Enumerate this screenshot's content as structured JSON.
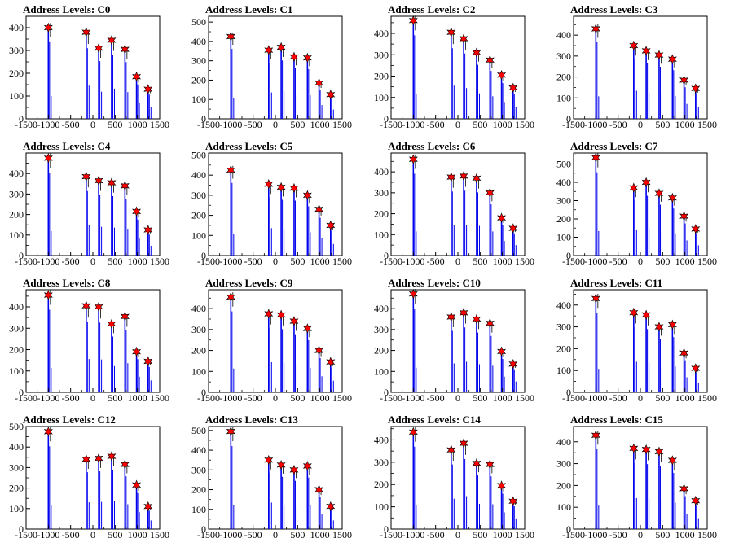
{
  "chart_data": [
    {
      "type": "bar",
      "title": "Address Levels: C0",
      "xlim": [
        -1500,
        1500
      ],
      "ylim": [
        0,
        450
      ],
      "x_ticks": [
        -1500,
        -1000,
        -500,
        0,
        500,
        1000,
        1500
      ],
      "y_ticks": [
        0,
        100,
        200,
        300,
        400
      ],
      "peaks": [
        {
          "x": -1000,
          "y": 400
        },
        {
          "x": -150,
          "y": 380
        },
        {
          "x": 130,
          "y": 310
        },
        {
          "x": 420,
          "y": 345
        },
        {
          "x": 720,
          "y": 305
        },
        {
          "x": 980,
          "y": 185
        },
        {
          "x": 1240,
          "y": 130
        }
      ]
    },
    {
      "type": "bar",
      "title": "Address Levels: C1",
      "xlim": [
        -1500,
        1500
      ],
      "ylim": [
        0,
        530
      ],
      "x_ticks": [
        -1500,
        -1000,
        -500,
        0,
        500,
        1000,
        1500
      ],
      "y_ticks": [
        0,
        100,
        200,
        300,
        400,
        500
      ],
      "peaks": [
        {
          "x": -1000,
          "y": 425
        },
        {
          "x": -150,
          "y": 355
        },
        {
          "x": 130,
          "y": 370
        },
        {
          "x": 420,
          "y": 320
        },
        {
          "x": 720,
          "y": 315
        },
        {
          "x": 980,
          "y": 185
        },
        {
          "x": 1240,
          "y": 125
        }
      ]
    },
    {
      "type": "bar",
      "title": "Address Levels: C2",
      "xlim": [
        -1500,
        1500
      ],
      "ylim": [
        0,
        480
      ],
      "x_ticks": [
        -1500,
        -1000,
        -500,
        0,
        500,
        1000,
        1500
      ],
      "y_ticks": [
        0,
        100,
        200,
        300,
        400
      ],
      "peaks": [
        {
          "x": -1000,
          "y": 460
        },
        {
          "x": -150,
          "y": 405
        },
        {
          "x": 130,
          "y": 375
        },
        {
          "x": 420,
          "y": 310
        },
        {
          "x": 720,
          "y": 275
        },
        {
          "x": 980,
          "y": 205
        },
        {
          "x": 1240,
          "y": 145
        }
      ]
    },
    {
      "type": "bar",
      "title": "Address Levels: C3",
      "xlim": [
        -1500,
        1500
      ],
      "ylim": [
        0,
        490
      ],
      "x_ticks": [
        -1500,
        -1000,
        -500,
        0,
        500,
        1000,
        1500
      ],
      "y_ticks": [
        0,
        100,
        200,
        300,
        400
      ],
      "peaks": [
        {
          "x": -1000,
          "y": 430
        },
        {
          "x": -150,
          "y": 350
        },
        {
          "x": 130,
          "y": 325
        },
        {
          "x": 420,
          "y": 305
        },
        {
          "x": 720,
          "y": 285
        },
        {
          "x": 980,
          "y": 185
        },
        {
          "x": 1240,
          "y": 145
        }
      ]
    },
    {
      "type": "bar",
      "title": "Address Levels: C4",
      "xlim": [
        -1500,
        1500
      ],
      "ylim": [
        0,
        500
      ],
      "x_ticks": [
        -1500,
        -1000,
        -500,
        0,
        500,
        1000,
        1500
      ],
      "y_ticks": [
        0,
        100,
        200,
        300,
        400
      ],
      "peaks": [
        {
          "x": -1000,
          "y": 475
        },
        {
          "x": -150,
          "y": 385
        },
        {
          "x": 130,
          "y": 365
        },
        {
          "x": 420,
          "y": 355
        },
        {
          "x": 720,
          "y": 340
        },
        {
          "x": 980,
          "y": 215
        },
        {
          "x": 1240,
          "y": 125
        }
      ]
    },
    {
      "type": "bar",
      "title": "Address Levels: C5",
      "xlim": [
        -1500,
        1500
      ],
      "ylim": [
        0,
        510
      ],
      "x_ticks": [
        -1500,
        -1000,
        -500,
        0,
        500,
        1000,
        1500
      ],
      "y_ticks": [
        0,
        100,
        200,
        300,
        400,
        500
      ],
      "peaks": [
        {
          "x": -1000,
          "y": 425
        },
        {
          "x": -150,
          "y": 355
        },
        {
          "x": 130,
          "y": 340
        },
        {
          "x": 420,
          "y": 335
        },
        {
          "x": 720,
          "y": 300
        },
        {
          "x": 980,
          "y": 230
        },
        {
          "x": 1240,
          "y": 150
        }
      ]
    },
    {
      "type": "bar",
      "title": "Address Levels: C6",
      "xlim": [
        -1500,
        1500
      ],
      "ylim": [
        0,
        490
      ],
      "x_ticks": [
        -1500,
        -1000,
        -500,
        0,
        500,
        1000,
        1500
      ],
      "y_ticks": [
        0,
        100,
        200,
        300,
        400
      ],
      "peaks": [
        {
          "x": -1000,
          "y": 460
        },
        {
          "x": -150,
          "y": 375
        },
        {
          "x": 130,
          "y": 380
        },
        {
          "x": 420,
          "y": 370
        },
        {
          "x": 720,
          "y": 300
        },
        {
          "x": 980,
          "y": 180
        },
        {
          "x": 1240,
          "y": 130
        }
      ]
    },
    {
      "type": "bar",
      "title": "Address Levels: C7",
      "xlim": [
        -1500,
        1500
      ],
      "ylim": [
        0,
        560
      ],
      "x_ticks": [
        -1500,
        -1000,
        -500,
        0,
        500,
        1000,
        1500
      ],
      "y_ticks": [
        0,
        100,
        200,
        300,
        400,
        500
      ],
      "peaks": [
        {
          "x": -1000,
          "y": 535
        },
        {
          "x": -150,
          "y": 370
        },
        {
          "x": 130,
          "y": 400
        },
        {
          "x": 420,
          "y": 340
        },
        {
          "x": 720,
          "y": 315
        },
        {
          "x": 980,
          "y": 215
        },
        {
          "x": 1240,
          "y": 145
        }
      ]
    },
    {
      "type": "bar",
      "title": "Address Levels: C8",
      "xlim": [
        -1500,
        1500
      ],
      "ylim": [
        0,
        480
      ],
      "x_ticks": [
        -1500,
        -1000,
        -500,
        0,
        500,
        1000,
        1500
      ],
      "y_ticks": [
        0,
        100,
        200,
        300,
        400
      ],
      "peaks": [
        {
          "x": -1000,
          "y": 455
        },
        {
          "x": -150,
          "y": 405
        },
        {
          "x": 130,
          "y": 400
        },
        {
          "x": 420,
          "y": 320
        },
        {
          "x": 720,
          "y": 355
        },
        {
          "x": 980,
          "y": 190
        },
        {
          "x": 1240,
          "y": 145
        }
      ]
    },
    {
      "type": "bar",
      "title": "Address Levels: C9",
      "xlim": [
        -1500,
        1500
      ],
      "ylim": [
        0,
        490
      ],
      "x_ticks": [
        -1500,
        -1000,
        -500,
        0,
        500,
        1000,
        1500
      ],
      "y_ticks": [
        0,
        100,
        200,
        300,
        400
      ],
      "peaks": [
        {
          "x": -1000,
          "y": 455
        },
        {
          "x": -150,
          "y": 375
        },
        {
          "x": 130,
          "y": 370
        },
        {
          "x": 420,
          "y": 340
        },
        {
          "x": 720,
          "y": 305
        },
        {
          "x": 980,
          "y": 200
        },
        {
          "x": 1240,
          "y": 145
        }
      ]
    },
    {
      "type": "bar",
      "title": "Address Levels: C10",
      "xlim": [
        -1500,
        1500
      ],
      "ylim": [
        0,
        490
      ],
      "x_ticks": [
        -1500,
        -1000,
        -500,
        0,
        500,
        1000,
        1500
      ],
      "y_ticks": [
        0,
        100,
        200,
        300,
        400
      ],
      "peaks": [
        {
          "x": -1000,
          "y": 470
        },
        {
          "x": -150,
          "y": 360
        },
        {
          "x": 130,
          "y": 380
        },
        {
          "x": 420,
          "y": 350
        },
        {
          "x": 720,
          "y": 330
        },
        {
          "x": 980,
          "y": 195
        },
        {
          "x": 1240,
          "y": 135
        }
      ]
    },
    {
      "type": "bar",
      "title": "Address Levels: C11",
      "xlim": [
        -1500,
        1500
      ],
      "ylim": [
        0,
        470
      ],
      "x_ticks": [
        -1500,
        -1000,
        -500,
        0,
        500,
        1000,
        1500
      ],
      "y_ticks": [
        0,
        100,
        200,
        300,
        400
      ],
      "peaks": [
        {
          "x": -1000,
          "y": 430
        },
        {
          "x": -150,
          "y": 365
        },
        {
          "x": 130,
          "y": 355
        },
        {
          "x": 420,
          "y": 300
        },
        {
          "x": 720,
          "y": 310
        },
        {
          "x": 980,
          "y": 180
        },
        {
          "x": 1240,
          "y": 110
        }
      ]
    },
    {
      "type": "bar",
      "title": "Address Levels: C12",
      "xlim": [
        -1500,
        1500
      ],
      "ylim": [
        0,
        500
      ],
      "x_ticks": [
        -1500,
        -1000,
        -500,
        0,
        500,
        1000,
        1500
      ],
      "y_ticks": [
        0,
        100,
        200,
        300,
        400,
        500
      ],
      "peaks": [
        {
          "x": -1000,
          "y": 475
        },
        {
          "x": -150,
          "y": 340
        },
        {
          "x": 130,
          "y": 345
        },
        {
          "x": 420,
          "y": 355
        },
        {
          "x": 720,
          "y": 315
        },
        {
          "x": 980,
          "y": 215
        },
        {
          "x": 1240,
          "y": 110
        }
      ]
    },
    {
      "type": "bar",
      "title": "Address Levels: C13",
      "xlim": [
        -1500,
        1500
      ],
      "ylim": [
        0,
        520
      ],
      "x_ticks": [
        -1500,
        -1000,
        -500,
        0,
        500,
        1000,
        1500
      ],
      "y_ticks": [
        0,
        100,
        200,
        300,
        400,
        500
      ],
      "peaks": [
        {
          "x": -1000,
          "y": 495
        },
        {
          "x": -150,
          "y": 350
        },
        {
          "x": 130,
          "y": 325
        },
        {
          "x": 420,
          "y": 300
        },
        {
          "x": 720,
          "y": 320
        },
        {
          "x": 980,
          "y": 200
        },
        {
          "x": 1240,
          "y": 115
        }
      ]
    },
    {
      "type": "bar",
      "title": "Address Levels: C14",
      "xlim": [
        -1500,
        1500
      ],
      "ylim": [
        0,
        460
      ],
      "x_ticks": [
        -1500,
        -1000,
        -500,
        0,
        500,
        1000,
        1500
      ],
      "y_ticks": [
        0,
        100,
        200,
        300,
        400
      ],
      "peaks": [
        {
          "x": -1000,
          "y": 435
        },
        {
          "x": -150,
          "y": 355
        },
        {
          "x": 130,
          "y": 385
        },
        {
          "x": 420,
          "y": 295
        },
        {
          "x": 720,
          "y": 290
        },
        {
          "x": 980,
          "y": 195
        },
        {
          "x": 1240,
          "y": 125
        }
      ]
    },
    {
      "type": "bar",
      "title": "Address Levels: C15",
      "xlim": [
        -1500,
        1500
      ],
      "ylim": [
        0,
        470
      ],
      "x_ticks": [
        -1500,
        -1000,
        -500,
        0,
        500,
        1000,
        1500
      ],
      "y_ticks": [
        0,
        100,
        200,
        300,
        400
      ],
      "peaks": [
        {
          "x": -1000,
          "y": 430
        },
        {
          "x": -150,
          "y": 370
        },
        {
          "x": 130,
          "y": 365
        },
        {
          "x": 420,
          "y": 355
        },
        {
          "x": 720,
          "y": 315
        },
        {
          "x": 980,
          "y": 185
        },
        {
          "x": 1240,
          "y": 130
        }
      ]
    }
  ],
  "colors": {
    "bar": "#0000ee",
    "marker": "#ff0000",
    "marker_edge": "#000000",
    "axis": "#000000"
  },
  "marker_icon": "star-marker-icon"
}
